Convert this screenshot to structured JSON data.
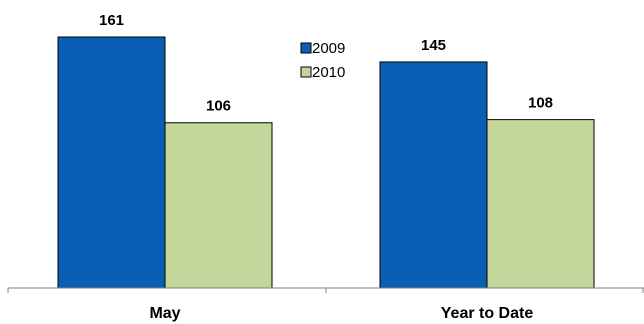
{
  "chart_data": {
    "type": "bar",
    "categories": [
      "May",
      "Year to Date"
    ],
    "series": [
      {
        "name": "2009",
        "values": [
          161,
          145
        ],
        "color": "#0a5fb4"
      },
      {
        "name": "2010",
        "values": [
          106,
          108
        ],
        "color": "#c4d79b"
      }
    ],
    "ylim": [
      0,
      180
    ],
    "grid": false,
    "legend": "top-center",
    "data_labels": true
  }
}
